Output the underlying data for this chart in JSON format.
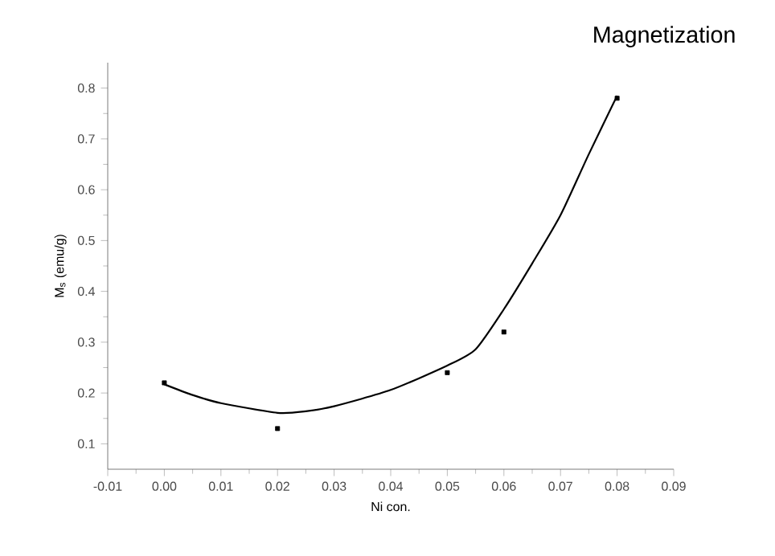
{
  "chart_data": {
    "type": "scatter",
    "title": "Magnetization",
    "xlabel": "Ni con.",
    "ylabel": "M$_{s}$ (emu/g)",
    "xlim": [
      -0.01,
      0.09
    ],
    "ylim": [
      0.05,
      0.85
    ],
    "xticks": [
      -0.01,
      {
        "value": 0,
        "label": "0.00"
      },
      0.01,
      0.02,
      0.03,
      0.04,
      0.05,
      0.06,
      0.07,
      0.08,
      0.09
    ],
    "yticks": [
      0.1,
      0.2,
      0.3,
      0.4,
      0.5,
      0.6,
      0.7,
      0.8
    ],
    "series": [
      {
        "marker": "square",
        "color": "#000000",
        "x": [
          0,
          0.02,
          0.05,
          0.06,
          0.08
        ],
        "values": [
          0.22,
          0.13,
          0.24,
          0.32,
          0.78
        ]
      },
      {
        "type": "line",
        "marker": "none",
        "color": "#000000",
        "x": [
          0,
          0.005,
          0.01,
          0.02,
          0.025,
          0.03,
          0.04,
          0.05,
          0.055,
          0.06,
          0.065,
          0.07,
          0.075,
          0.08
        ],
        "values": [
          0.217,
          0.196,
          0.18,
          0.161,
          0.164,
          0.174,
          0.206,
          0.254,
          0.286,
          0.365,
          0.455,
          0.55,
          0.67,
          0.785
        ]
      }
    ]
  }
}
